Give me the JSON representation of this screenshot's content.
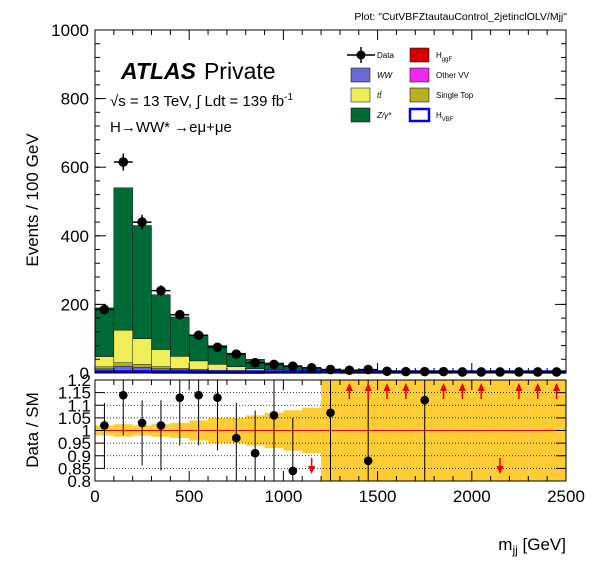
{
  "plot_label": "Plot: \"CutVBFZtautauControl_2jetinclOLV/Mjj\"",
  "atlas": {
    "bold": "ATLAS",
    "rest": "Private"
  },
  "energy_label": "√s = 13 TeV, ∫ Ldt = 139 fb",
  "energy_label_sup": "-1",
  "process_label": "H→WW* →eμ+μe",
  "colors": {
    "ztautau": "#006a37",
    "top": "#f0ee58",
    "ww": "#6b6bd6",
    "singletop": "#b8b020",
    "othervv": "#ee2aee",
    "ggf": "#d40000",
    "vbf": "#0000ee",
    "band": "#ffcc33",
    "ratio_line": "#ee0000",
    "arrow": "#ee0000"
  },
  "legend": [
    {
      "key": "data",
      "label": "Data"
    },
    {
      "key": "ww",
      "label": "WW"
    },
    {
      "key": "top",
      "label": "tt̄"
    },
    {
      "key": "ztautau",
      "label": "Z/γ*"
    },
    {
      "key": "ggf",
      "label": "H",
      "sub": "ggF"
    },
    {
      "key": "othervv",
      "label": "Other VV"
    },
    {
      "key": "singletop",
      "label": "Single Top"
    },
    {
      "key": "vbf",
      "label": "H",
      "sub": "VBF"
    }
  ],
  "chart_data": [
    {
      "type": "bar",
      "stacked": true,
      "ylabel": "Events / 100 GeV",
      "ylim": [
        0,
        1000
      ],
      "yticks": [
        0,
        200,
        400,
        600,
        800,
        1000
      ],
      "bin_edges": [
        0,
        100,
        200,
        300,
        400,
        500,
        600,
        700,
        800,
        900,
        1000,
        1100,
        1200,
        1300,
        1400,
        1500,
        1600,
        1700,
        1800,
        1900,
        2000,
        2100,
        2200,
        2300,
        2400,
        2500
      ],
      "series": [
        {
          "name": "H",
          "key": "ggf",
          "values": [
            1,
            1,
            1,
            0.5,
            0.5,
            0.3,
            0.2,
            0.1,
            0.1,
            0,
            0,
            0,
            0,
            0,
            0,
            0,
            0,
            0,
            0,
            0,
            0,
            0,
            0,
            0,
            0
          ]
        },
        {
          "name": "Other VV",
          "key": "othervv",
          "values": [
            3,
            5,
            4,
            3,
            2,
            2,
            1,
            1,
            1,
            0.5,
            0.5,
            0.5,
            0,
            0,
            0,
            0,
            0,
            0,
            0,
            0,
            0,
            0,
            0,
            0,
            0
          ]
        },
        {
          "name": "WW",
          "key": "ww",
          "values": [
            8,
            14,
            12,
            9,
            7,
            5,
            4,
            3,
            2,
            2,
            1,
            1,
            1,
            0.5,
            0.5,
            0.5,
            0.5,
            0,
            0,
            0,
            0,
            0,
            0,
            0,
            0
          ]
        },
        {
          "name": "Single Top",
          "key": "singletop",
          "values": [
            6,
            10,
            8,
            6,
            4,
            3,
            2,
            2,
            1,
            1,
            1,
            0.5,
            0.5,
            0,
            0,
            0,
            0,
            0,
            0,
            0,
            0,
            0,
            0,
            0,
            0
          ]
        },
        {
          "name": "tt̄",
          "key": "top",
          "values": [
            30,
            95,
            75,
            50,
            35,
            25,
            18,
            12,
            8,
            6,
            4,
            3,
            2,
            2,
            1,
            1,
            1,
            0.5,
            0.5,
            0,
            0,
            0,
            0,
            0,
            0
          ]
        },
        {
          "name": "Z/γ*",
          "key": "ztautau",
          "values": [
            142,
            415,
            330,
            160,
            115,
            75,
            55,
            40,
            28,
            20,
            15,
            11,
            8,
            7,
            6,
            5,
            3,
            3,
            2,
            2,
            1,
            1,
            1,
            0.5,
            0.5
          ]
        }
      ],
      "data": [
        185,
        615,
        440,
        240,
        170,
        110,
        75,
        55,
        30,
        25,
        20,
        15,
        10,
        8,
        10,
        5,
        4,
        4,
        4,
        3,
        3,
        3,
        3,
        3,
        3
      ]
    },
    {
      "type": "scatter",
      "ylabel": "Data / SM",
      "ylim": [
        0.8,
        1.2
      ],
      "yticks": [
        0.8,
        0.85,
        0.9,
        0.95,
        1,
        1.05,
        1.1,
        1.15,
        1.2
      ],
      "xlabel": "m",
      "xlabel_sub": "jj",
      "xlabel_unit": " [GeV]",
      "xlim": [
        0,
        2500
      ],
      "xticks": [
        0,
        500,
        1000,
        1500,
        2000,
        2500
      ],
      "ratio": [
        1.02,
        1.14,
        1.03,
        1.02,
        1.13,
        1.14,
        1.13,
        0.97,
        0.91,
        1.06,
        0.84,
        null,
        1.07,
        null,
        0.88,
        null,
        null,
        1.12,
        null,
        null,
        null,
        null,
        null,
        null,
        null
      ],
      "ratio_err": [
        0.03,
        0.02,
        0.03,
        0.04,
        0.05,
        0.06,
        0.07,
        0.08,
        0.11,
        0.12,
        0.15,
        0,
        0.2,
        0,
        0.3,
        0,
        0,
        0.35,
        0,
        0,
        0,
        0,
        0,
        0,
        0
      ],
      "arrows": [
        "",
        "",
        "",
        "",
        "",
        "",
        "",
        "",
        "",
        "",
        "",
        "down",
        "",
        "up",
        "up",
        "up",
        "up",
        "",
        "up",
        "up",
        "up",
        "down",
        "up",
        "up",
        "up"
      ],
      "band_err": [
        0.02,
        0.025,
        0.02,
        0.025,
        0.03,
        0.04,
        0.05,
        0.05,
        0.06,
        0.07,
        0.08,
        0.09,
        0.2,
        0.2,
        0.2,
        0.2,
        0.2,
        0.2,
        0.2,
        0.2,
        0.2,
        0.2,
        0.2,
        0.2,
        0.2
      ]
    }
  ]
}
